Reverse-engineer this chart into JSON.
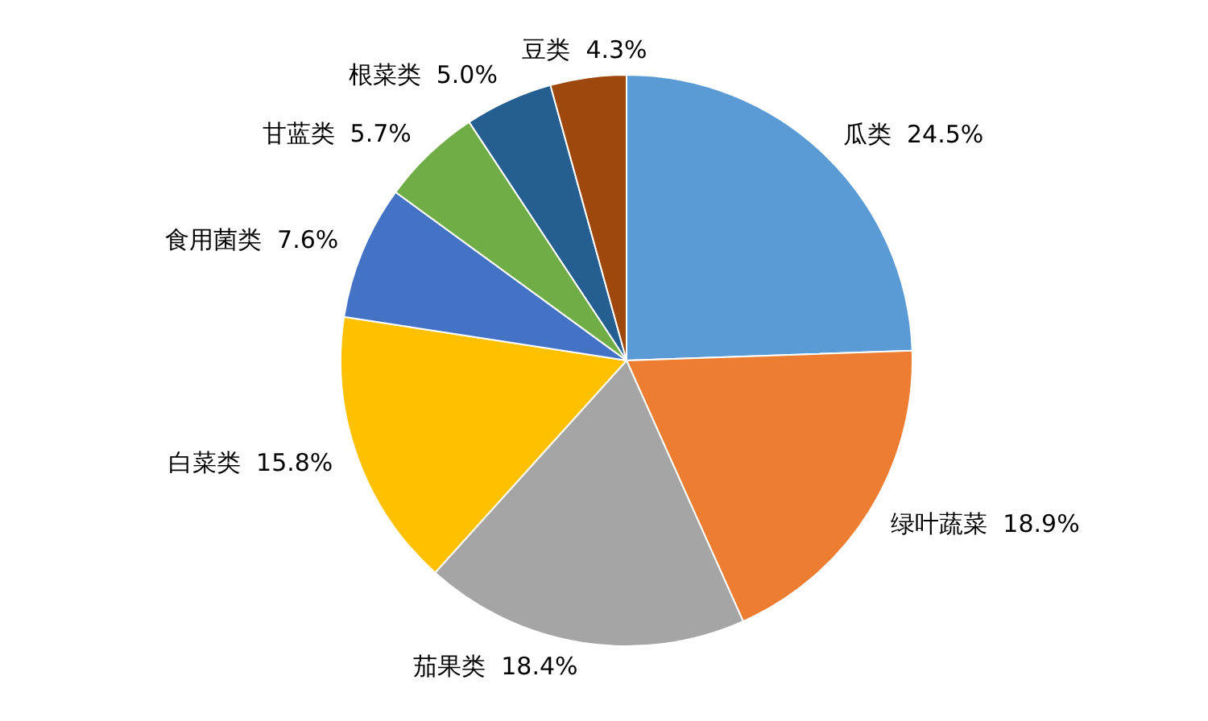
{
  "chart_data": {
    "type": "pie",
    "categories": [
      "瓜类",
      "绿叶蔬菜",
      "茄果类",
      "白菜类",
      "食用菌类",
      "甘蓝类",
      "根菜类",
      "豆类"
    ],
    "values": [
      24.5,
      18.9,
      18.4,
      15.8,
      7.6,
      5.7,
      5.0,
      4.3
    ],
    "value_labels": [
      "24.5%",
      "18.9%",
      "18.4%",
      "15.8%",
      "7.6%",
      "5.7%",
      "5.0%",
      "4.3%"
    ],
    "colors": [
      "#5b9bd5",
      "#ed7d31",
      "#a5a5a5",
      "#ffc000",
      "#4472c4",
      "#70ad47",
      "#255e91",
      "#9e480e"
    ],
    "legend": false
  }
}
